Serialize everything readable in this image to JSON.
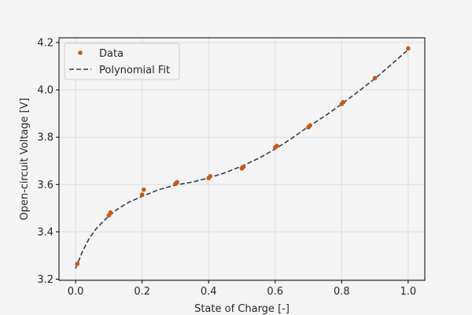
{
  "chart_data": {
    "type": "scatter",
    "title": "",
    "xlabel": "State of Charge [-]",
    "ylabel": "Open-circuit Voltage [V]",
    "xlim": [
      -0.05,
      1.05
    ],
    "ylim": [
      3.195,
      4.22
    ],
    "xticks": [
      0.0,
      0.2,
      0.4,
      0.6,
      0.8,
      1.0
    ],
    "yticks": [
      3.2,
      3.4,
      3.6,
      3.8,
      4.0,
      4.2
    ],
    "xtick_labels": [
      "0.0",
      "0.2",
      "0.4",
      "0.6",
      "0.8",
      "1.0"
    ],
    "ytick_labels": [
      "3.2",
      "3.4",
      "3.6",
      "3.8",
      "4.0",
      "4.2"
    ],
    "grid": true,
    "legend_position": "top-left",
    "series": [
      {
        "name": "Data",
        "kind": "markers",
        "color": "#c85a17",
        "x": [
          0.005,
          0.1,
          0.105,
          0.2,
          0.205,
          0.3,
          0.305,
          0.4,
          0.405,
          0.5,
          0.505,
          0.6,
          0.605,
          0.7,
          0.705,
          0.8,
          0.805,
          0.9,
          1.0
        ],
        "y": [
          3.265,
          3.47,
          3.482,
          3.557,
          3.578,
          3.603,
          3.61,
          3.627,
          3.635,
          3.668,
          3.675,
          3.757,
          3.763,
          3.842,
          3.85,
          3.94,
          3.948,
          4.05,
          4.175
        ]
      },
      {
        "name": "Polynomial Fit",
        "kind": "dashed-line",
        "color": "#2e4057",
        "x": [
          0.0,
          0.02,
          0.04,
          0.06,
          0.08,
          0.1,
          0.13,
          0.16,
          0.2,
          0.25,
          0.3,
          0.35,
          0.4,
          0.45,
          0.5,
          0.55,
          0.6,
          0.65,
          0.7,
          0.75,
          0.8,
          0.85,
          0.9,
          0.95,
          1.0
        ],
        "y": [
          3.245,
          3.315,
          3.37,
          3.41,
          3.44,
          3.467,
          3.5,
          3.525,
          3.55,
          3.578,
          3.598,
          3.61,
          3.628,
          3.65,
          3.678,
          3.71,
          3.75,
          3.795,
          3.845,
          3.89,
          3.94,
          3.993,
          4.048,
          4.108,
          4.17
        ]
      }
    ]
  }
}
